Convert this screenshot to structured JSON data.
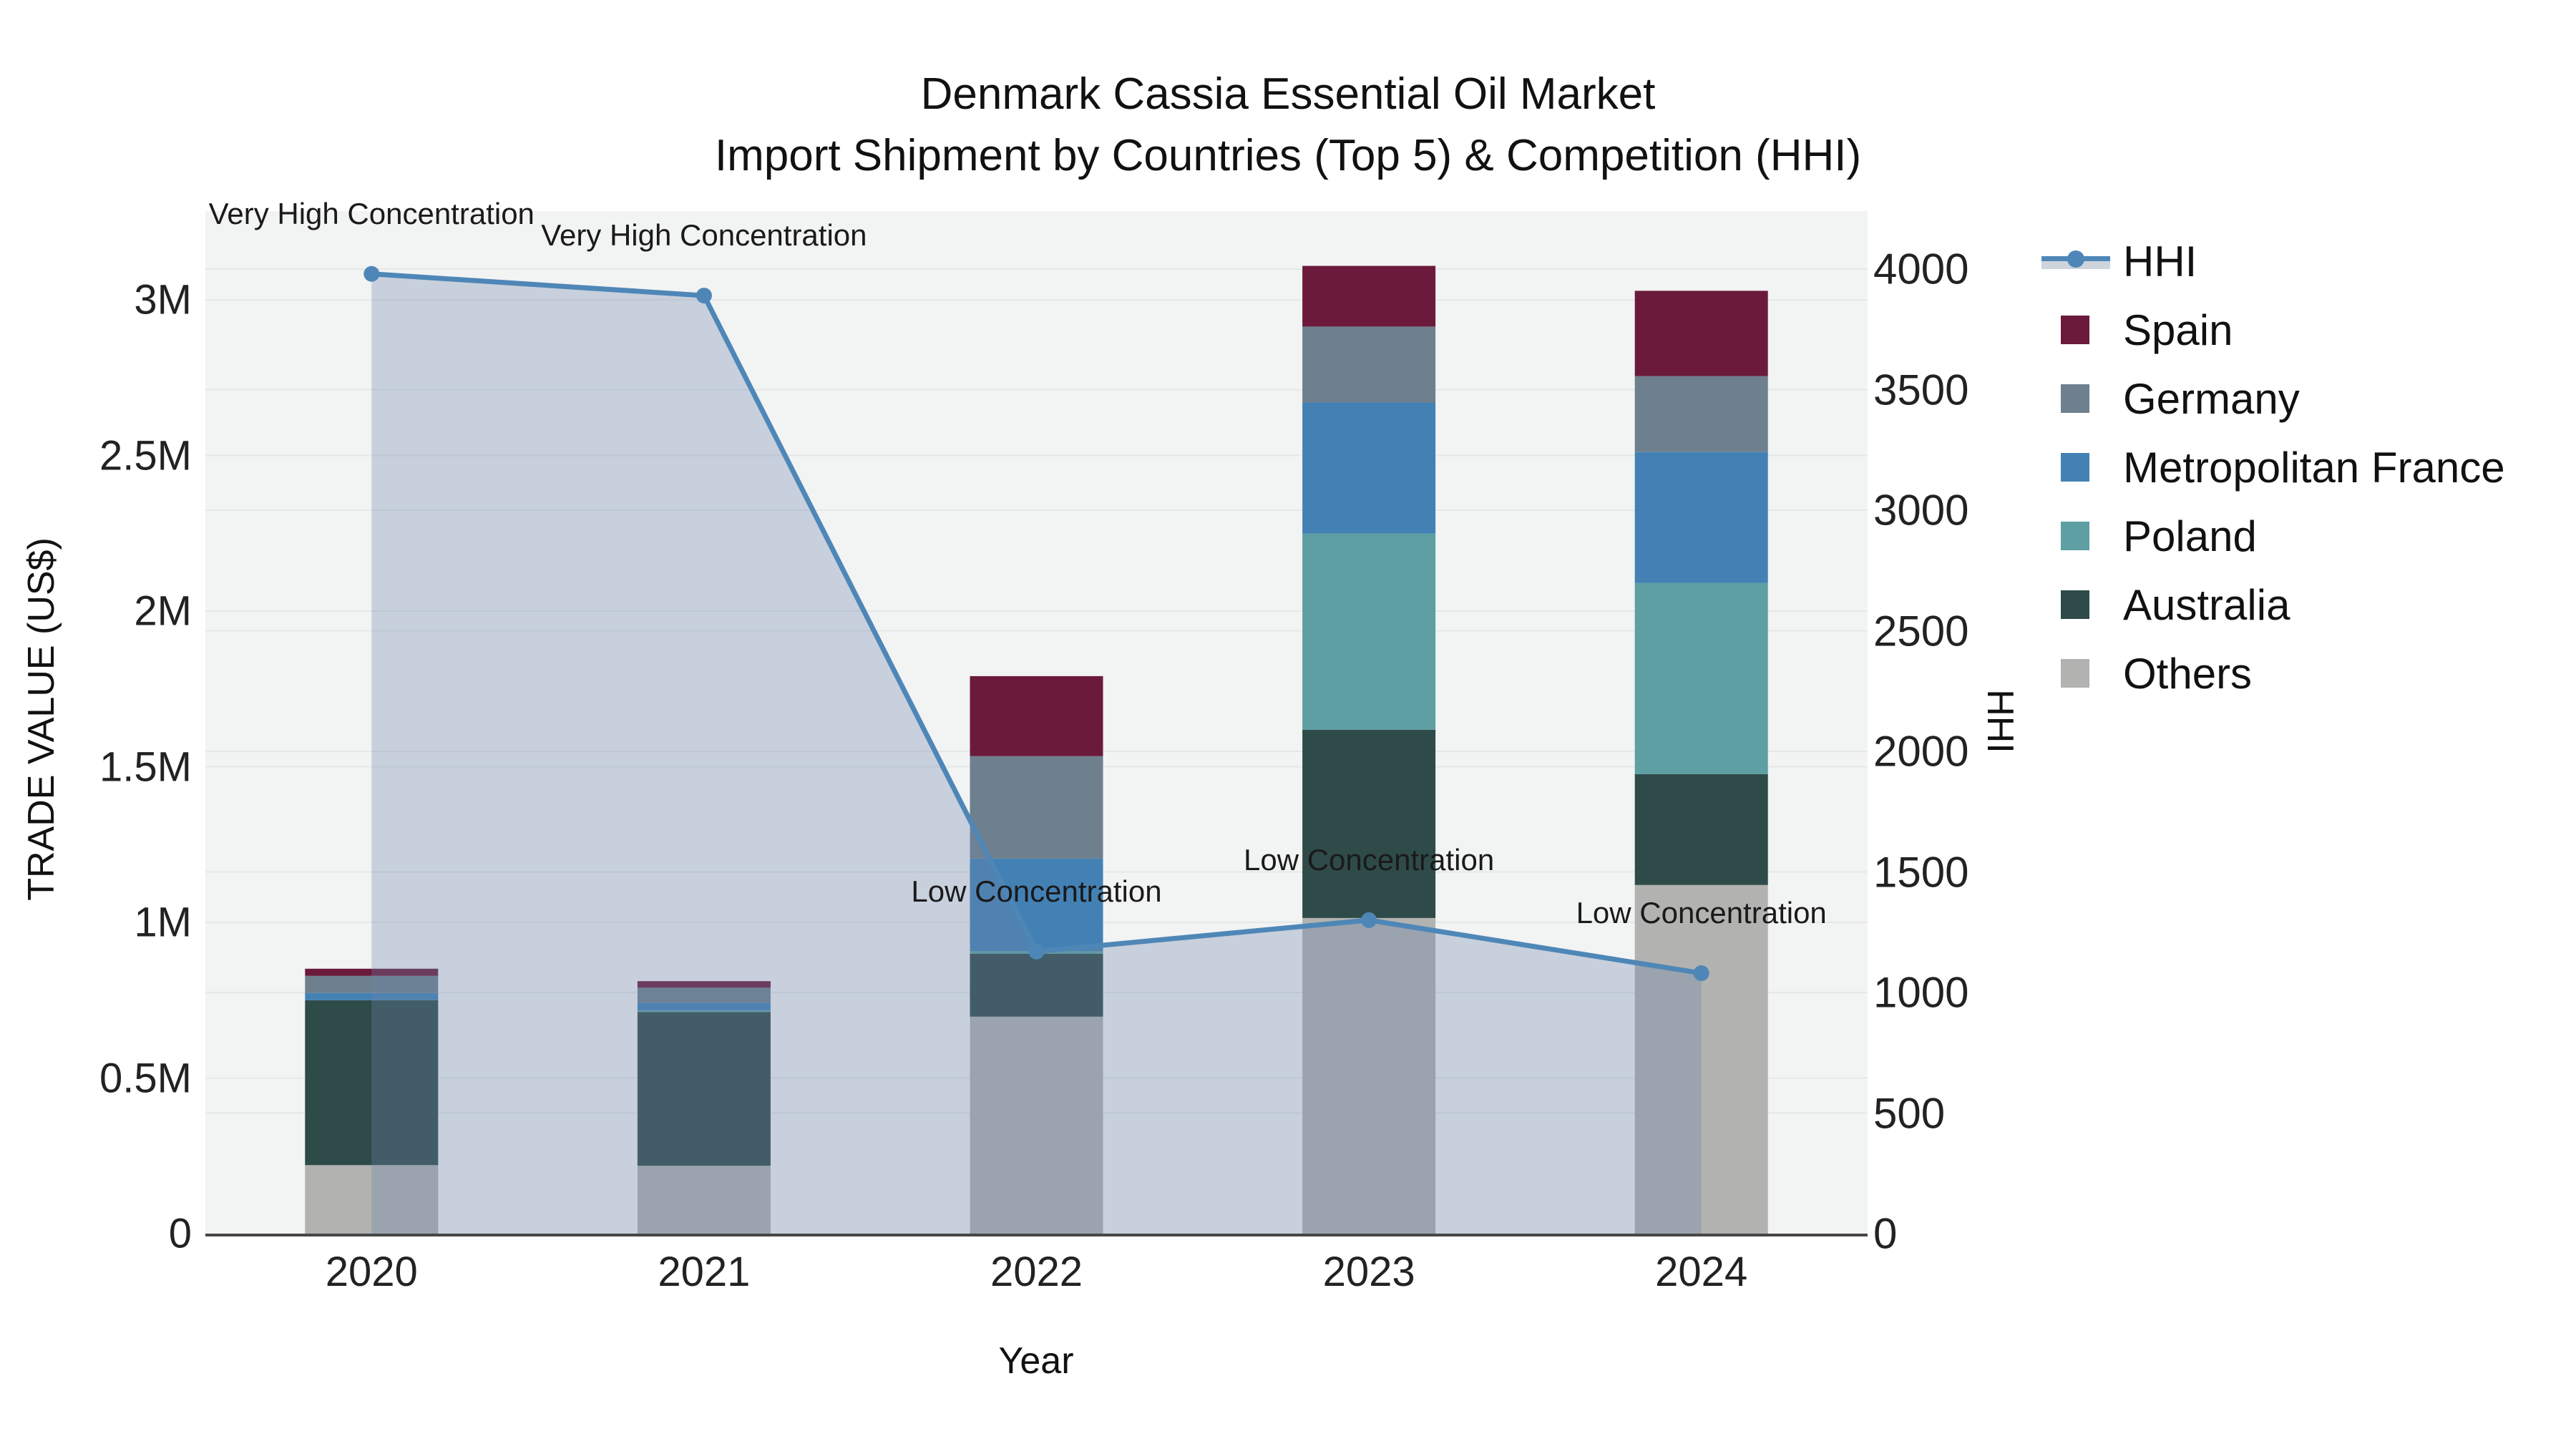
{
  "title": {
    "line1": "Denmark Cassia Essential Oil Market",
    "line2": "Import Shipment by Countries (Top 5) & Competition (HHI)"
  },
  "axes": {
    "x_title": "Year",
    "y_left_title": "TRADE VALUE (US$)",
    "y_right_title": "HHI",
    "x_ticks": [
      "2020",
      "2021",
      "2022",
      "2023",
      "2024"
    ],
    "y_left_ticks": [
      {
        "label": "0",
        "value": 0
      },
      {
        "label": "0.5M",
        "value": 500000
      },
      {
        "label": "1M",
        "value": 1000000
      },
      {
        "label": "1.5M",
        "value": 1500000
      },
      {
        "label": "2M",
        "value": 2000000
      },
      {
        "label": "2.5M",
        "value": 2500000
      },
      {
        "label": "3M",
        "value": 3000000
      }
    ],
    "y_right_ticks": [
      {
        "label": "0",
        "value": 0
      },
      {
        "label": "500",
        "value": 500
      },
      {
        "label": "1000",
        "value": 1000
      },
      {
        "label": "1500",
        "value": 1500
      },
      {
        "label": "2000",
        "value": 2000
      },
      {
        "label": "2500",
        "value": 2500
      },
      {
        "label": "3000",
        "value": 3000
      },
      {
        "label": "3500",
        "value": 3500
      },
      {
        "label": "4000",
        "value": 4000
      }
    ]
  },
  "colors": {
    "plot_bg": "#f2f3f3",
    "grid": "#e5e8e8",
    "axis_line": "#474747",
    "hhi_line": "#4e87b7",
    "hhi_area_fill": "rgba(110,135,170,0.32)",
    "legend_area_band": "#cdd4db",
    "text": "#1a1a1a"
  },
  "chart_data": {
    "type": "bar+line",
    "title": "Denmark Cassia Essential Oil Market — Import Shipment by Countries (Top 5) & Competition (HHI)",
    "xlabel": "Year",
    "ylabel": "TRADE VALUE (US$)",
    "y2label": "HHI",
    "categories": [
      "2020",
      "2021",
      "2022",
      "2023",
      "2024"
    ],
    "stacked": true,
    "stack_note": "series listed top-of-stack first; rendered bottom-up as Others, Australia, Poland, Metropolitan France, Germany, Spain",
    "ylim": [
      0,
      3300000
    ],
    "y2lim": [
      0,
      4000
    ],
    "grid": true,
    "legend_position": "right",
    "series": [
      {
        "name": "Spain",
        "color": "#6b1a3c",
        "axis": "left",
        "values": [
          23000,
          21000,
          257000,
          195000,
          274000
        ]
      },
      {
        "name": "Germany",
        "color": "#6e7f8e",
        "axis": "left",
        "values": [
          55000,
          48000,
          329000,
          244000,
          244000
        ]
      },
      {
        "name": "Metropolitan France",
        "color": "#4381b4",
        "axis": "left",
        "values": [
          23000,
          25000,
          297000,
          421000,
          421000
        ]
      },
      {
        "name": "Poland",
        "color": "#5d9fa2",
        "axis": "left",
        "values": [
          0,
          5000,
          9000,
          630000,
          614000
        ]
      },
      {
        "name": "Australia",
        "color": "#2e4b49",
        "axis": "left",
        "values": [
          530000,
          494000,
          202000,
          605000,
          356000
        ]
      },
      {
        "name": "Others",
        "color": "#b2b2b0",
        "axis": "left",
        "values": [
          220000,
          218000,
          697000,
          1014000,
          1120000
        ]
      }
    ],
    "hhi": {
      "name": "HHI",
      "axis": "right",
      "style": "line+markers+area-to-zero",
      "color": "#4e87b7",
      "values": [
        3980,
        3890,
        1170,
        1300,
        1080
      ]
    },
    "annotations": [
      {
        "category": "2020",
        "text": "Very High Concentration"
      },
      {
        "category": "2021",
        "text": "Very High Concentration"
      },
      {
        "category": "2022",
        "text": "Low Concentration"
      },
      {
        "category": "2023",
        "text": "Low Concentration"
      },
      {
        "category": "2024",
        "text": "Low Concentration"
      }
    ]
  },
  "legend": {
    "items": [
      {
        "label": "HHI",
        "type": "line",
        "color": "#4e87b7"
      },
      {
        "label": "Spain",
        "type": "swatch",
        "color": "#6b1a3c"
      },
      {
        "label": "Germany",
        "type": "swatch",
        "color": "#6e7f8e"
      },
      {
        "label": "Metropolitan France",
        "type": "swatch",
        "color": "#4381b4"
      },
      {
        "label": "Poland",
        "type": "swatch",
        "color": "#5d9fa2"
      },
      {
        "label": "Australia",
        "type": "swatch",
        "color": "#2e4b49"
      },
      {
        "label": "Others",
        "type": "swatch",
        "color": "#b2b2b0"
      }
    ]
  }
}
